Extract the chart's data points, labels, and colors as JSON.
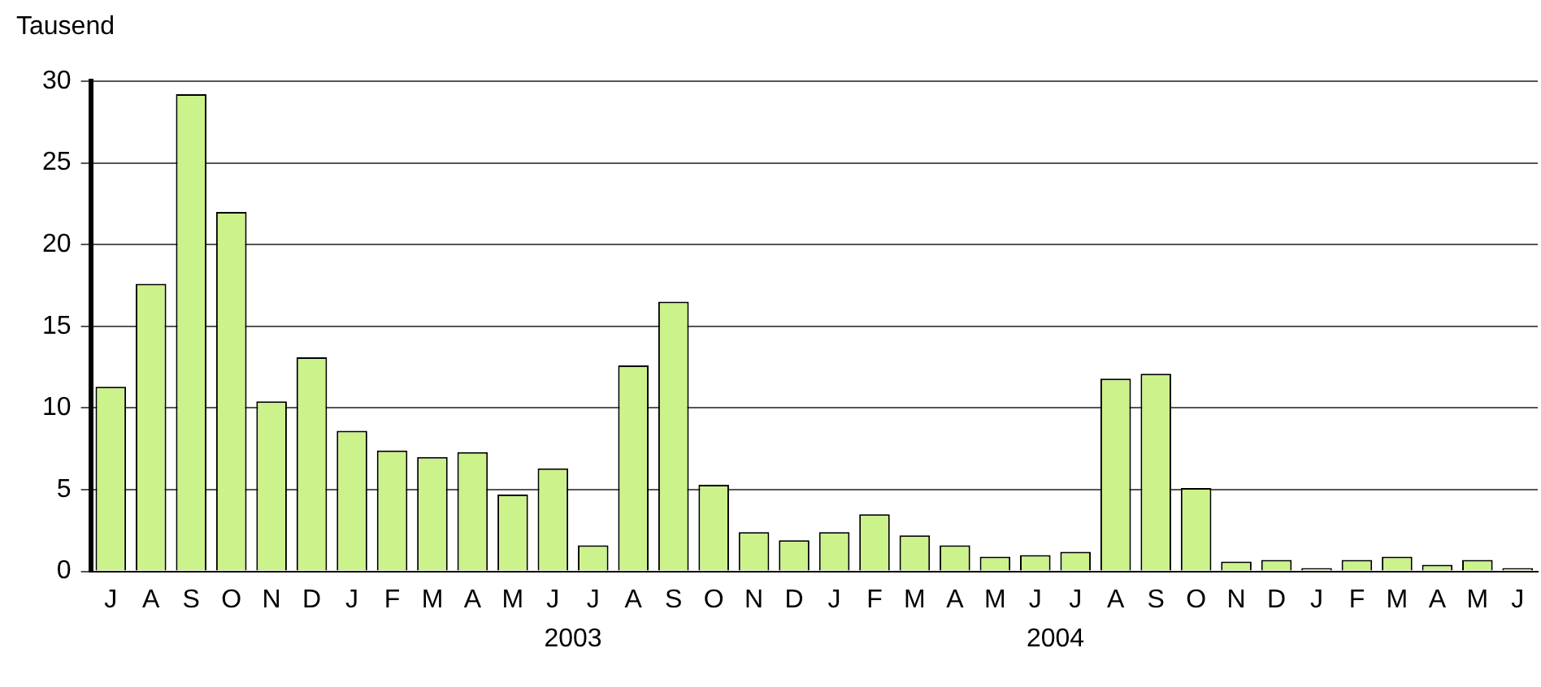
{
  "chart_data": {
    "type": "bar",
    "ylabel": "Tausend",
    "categories": [
      "J",
      "A",
      "S",
      "O",
      "N",
      "D",
      "J",
      "F",
      "M",
      "A",
      "M",
      "J",
      "J",
      "A",
      "S",
      "O",
      "N",
      "D",
      "J",
      "F",
      "M",
      "A",
      "M",
      "J",
      "J",
      "A",
      "S",
      "O",
      "N",
      "D",
      "J",
      "F",
      "M",
      "A",
      "M",
      "J"
    ],
    "series": [
      {
        "color": "#ccf28c",
        "values": [
          11.3,
          17.6,
          29.2,
          22,
          10.4,
          13.1,
          8.6,
          7.4,
          7.0,
          7.3,
          4.7,
          6.3,
          1.6,
          12.6,
          16.5,
          5.3,
          2.4,
          1.9,
          2.4,
          3.5,
          2.2,
          1.6,
          0.9,
          1.0,
          1.2,
          11.8,
          12.1,
          5.1,
          0.6,
          0.7,
          0.2,
          0.7,
          0.9,
          0.4,
          0.7,
          0.2
        ]
      }
    ],
    "ylim": [
      0,
      30
    ],
    "yticks": [
      0,
      5,
      10,
      15,
      20,
      25,
      30
    ],
    "grid": "y",
    "legend": false,
    "annotations": [
      "2003",
      "2004"
    ]
  }
}
